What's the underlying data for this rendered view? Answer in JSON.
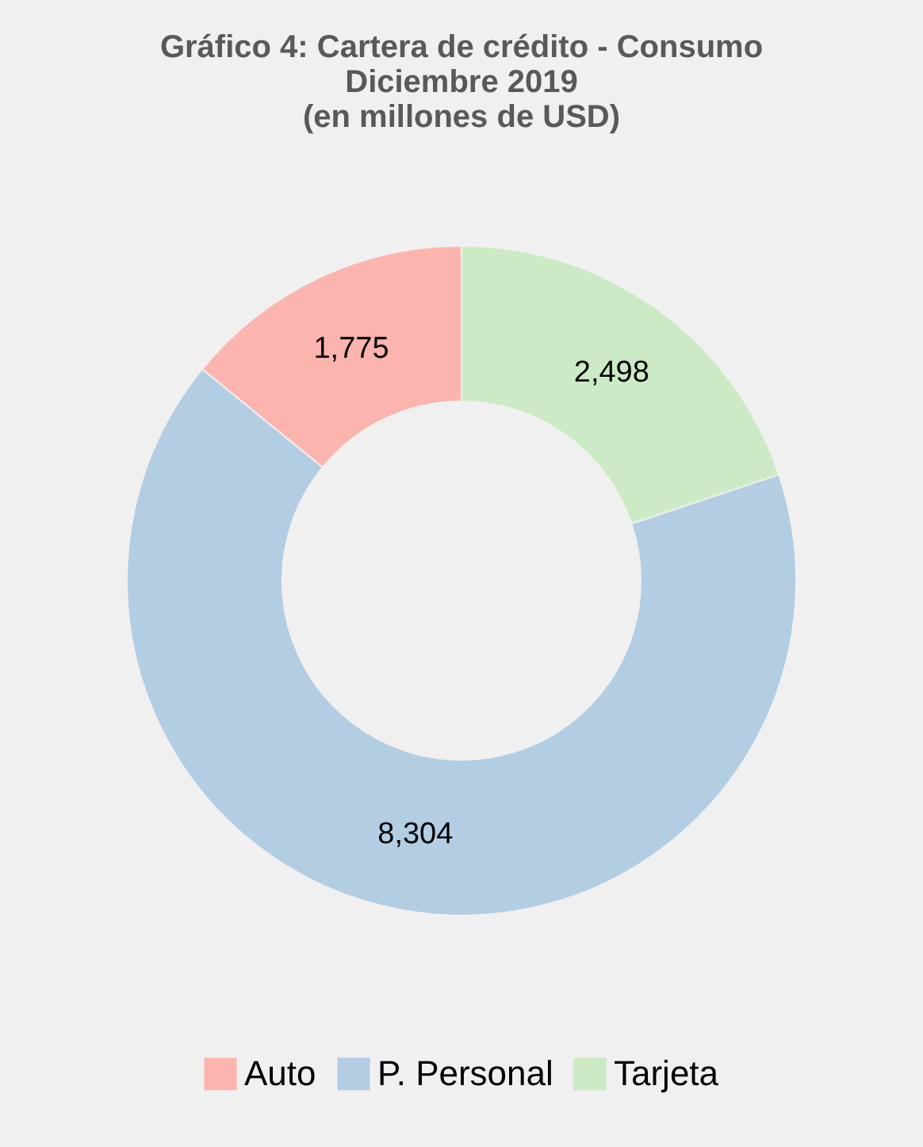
{
  "chart_data": {
    "type": "donut",
    "title": "Gráfico 4: Cartera de crédito - Consumo\nDiciembre  2019\n(en millones de USD)",
    "categories": [
      "Auto",
      "P. Personal",
      "Tarjeta"
    ],
    "values": [
      1775,
      8304,
      2498
    ],
    "colors": [
      "#fbb4ae",
      "#b3cde3",
      "#ccebc5"
    ],
    "value_labels": [
      "1,775",
      "8,304",
      "2,498"
    ],
    "legend": "bottom"
  }
}
